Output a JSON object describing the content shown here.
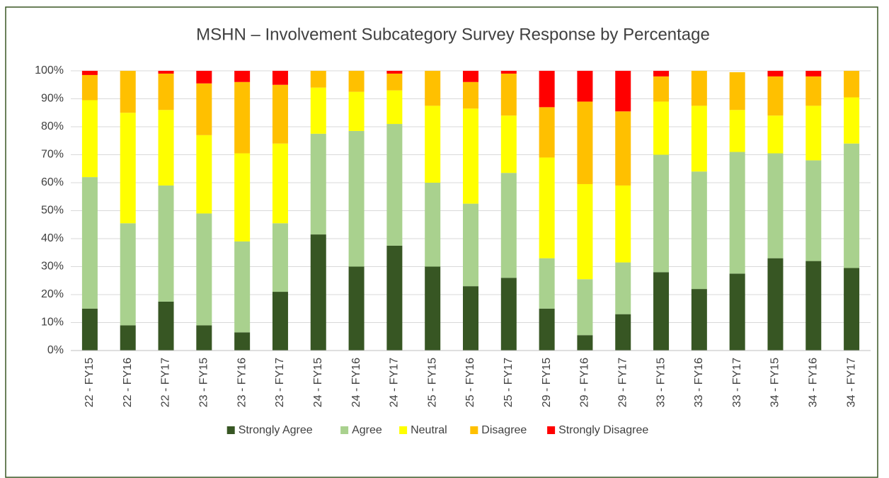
{
  "chart_data": {
    "type": "stacked_bar",
    "title": "MSHN – Involvement Subcategory Survey Response by Percentage",
    "categories": [
      "22 - FY15",
      "22 - FY16",
      "22 - FY17",
      "23 - FY15",
      "23 - FY16",
      "23 - FY17",
      "24 - FY15",
      "24 - FY16",
      "24 - FY17",
      "25 - FY15",
      "25 - FY16",
      "25 - FY17",
      "29 - FY15",
      "29 - FY16",
      "29 - FY17",
      "33 - FY15",
      "33 - FY16",
      "33 - FY17",
      "34 - FY15",
      "34 - FY16",
      "34 - FY17"
    ],
    "series": [
      {
        "name": "Strongly Agree",
        "color": "#375623",
        "values": [
          15,
          9,
          17.5,
          9,
          6.5,
          21,
          41.5,
          30,
          37.5,
          30,
          23,
          26,
          15,
          5.5,
          13,
          28,
          22,
          27.5,
          33,
          32,
          29.5
        ]
      },
      {
        "name": "Agree",
        "color": "#a9d18e",
        "values": [
          47,
          36.5,
          41.5,
          40,
          32.5,
          24.5,
          36,
          48.5,
          43.5,
          30,
          29.5,
          37.5,
          18,
          20,
          18.5,
          42,
          42,
          43.5,
          37.5,
          36,
          44.5
        ]
      },
      {
        "name": "Neutral",
        "color": "#ffff00",
        "values": [
          27.5,
          39.5,
          27,
          28,
          31.5,
          28.5,
          16.5,
          14,
          12,
          27.5,
          34,
          20.5,
          36,
          34,
          27.5,
          19,
          23.5,
          15,
          13.5,
          19.5,
          16.5
        ]
      },
      {
        "name": "Disagree",
        "color": "#ffc000",
        "values": [
          9,
          15,
          13,
          18.5,
          25.5,
          21,
          6,
          7.5,
          6,
          12.5,
          9.5,
          15,
          18,
          29.5,
          26.5,
          9,
          12.5,
          13.5,
          14,
          10.5,
          9.5
        ]
      },
      {
        "name": "Strongly Disagree",
        "color": "#ff0000",
        "values": [
          1.5,
          0,
          1,
          4.5,
          4,
          5,
          0,
          0,
          1,
          0,
          4,
          1,
          13,
          11,
          14.5,
          2,
          0,
          0,
          2,
          2,
          0
        ]
      }
    ],
    "ylim": [
      0,
      100
    ],
    "yticks": [
      {
        "value": 0,
        "label": "0%"
      },
      {
        "value": 10,
        "label": "10%"
      },
      {
        "value": 20,
        "label": "20%"
      },
      {
        "value": 30,
        "label": "30%"
      },
      {
        "value": 40,
        "label": "40%"
      },
      {
        "value": 50,
        "label": "50%"
      },
      {
        "value": 60,
        "label": "60%"
      },
      {
        "value": 70,
        "label": "70%"
      },
      {
        "value": 80,
        "label": "80%"
      },
      {
        "value": 90,
        "label": "90%"
      },
      {
        "value": 100,
        "label": "100%"
      }
    ],
    "grid": true,
    "legend": "bottom"
  }
}
